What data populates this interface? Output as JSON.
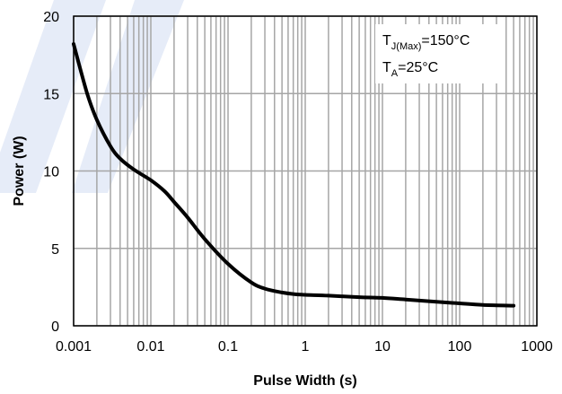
{
  "chart_data": {
    "type": "line",
    "title": "",
    "xlabel": "Pulse Width (s)",
    "ylabel": "Power (W)",
    "x_scale": "log",
    "xlim": [
      0.001,
      1000
    ],
    "ylim": [
      0,
      20
    ],
    "x_ticks": [
      "0.001",
      "0.01",
      "0.1",
      "1",
      "10",
      "100",
      "1000"
    ],
    "y_ticks": [
      "0",
      "5",
      "10",
      "15",
      "20"
    ],
    "grid": true,
    "annotations": [
      {
        "main": "T",
        "sub": "J(Max)",
        "rest": "=150°C"
      },
      {
        "main": "T",
        "sub": "A",
        "rest": "=25°C"
      }
    ],
    "series": [
      {
        "x": [
          0.001,
          0.0015,
          0.002,
          0.003,
          0.004,
          0.006,
          0.01,
          0.015,
          0.02,
          0.03,
          0.05,
          0.1,
          0.2,
          0.3,
          0.5,
          0.7,
          1,
          2,
          5,
          10,
          20,
          50,
          100,
          200,
          500
        ],
        "y": [
          18.2,
          15.0,
          13.3,
          11.6,
          10.8,
          10.1,
          9.4,
          8.7,
          8.0,
          7.0,
          5.6,
          4.0,
          2.8,
          2.4,
          2.15,
          2.05,
          2.0,
          1.95,
          1.85,
          1.8,
          1.7,
          1.55,
          1.45,
          1.35,
          1.3
        ]
      }
    ],
    "colors": {
      "line": "#000000",
      "grid": "#a6a6a6",
      "frame": "#000000",
      "watermark": "#e6ecf8"
    }
  }
}
